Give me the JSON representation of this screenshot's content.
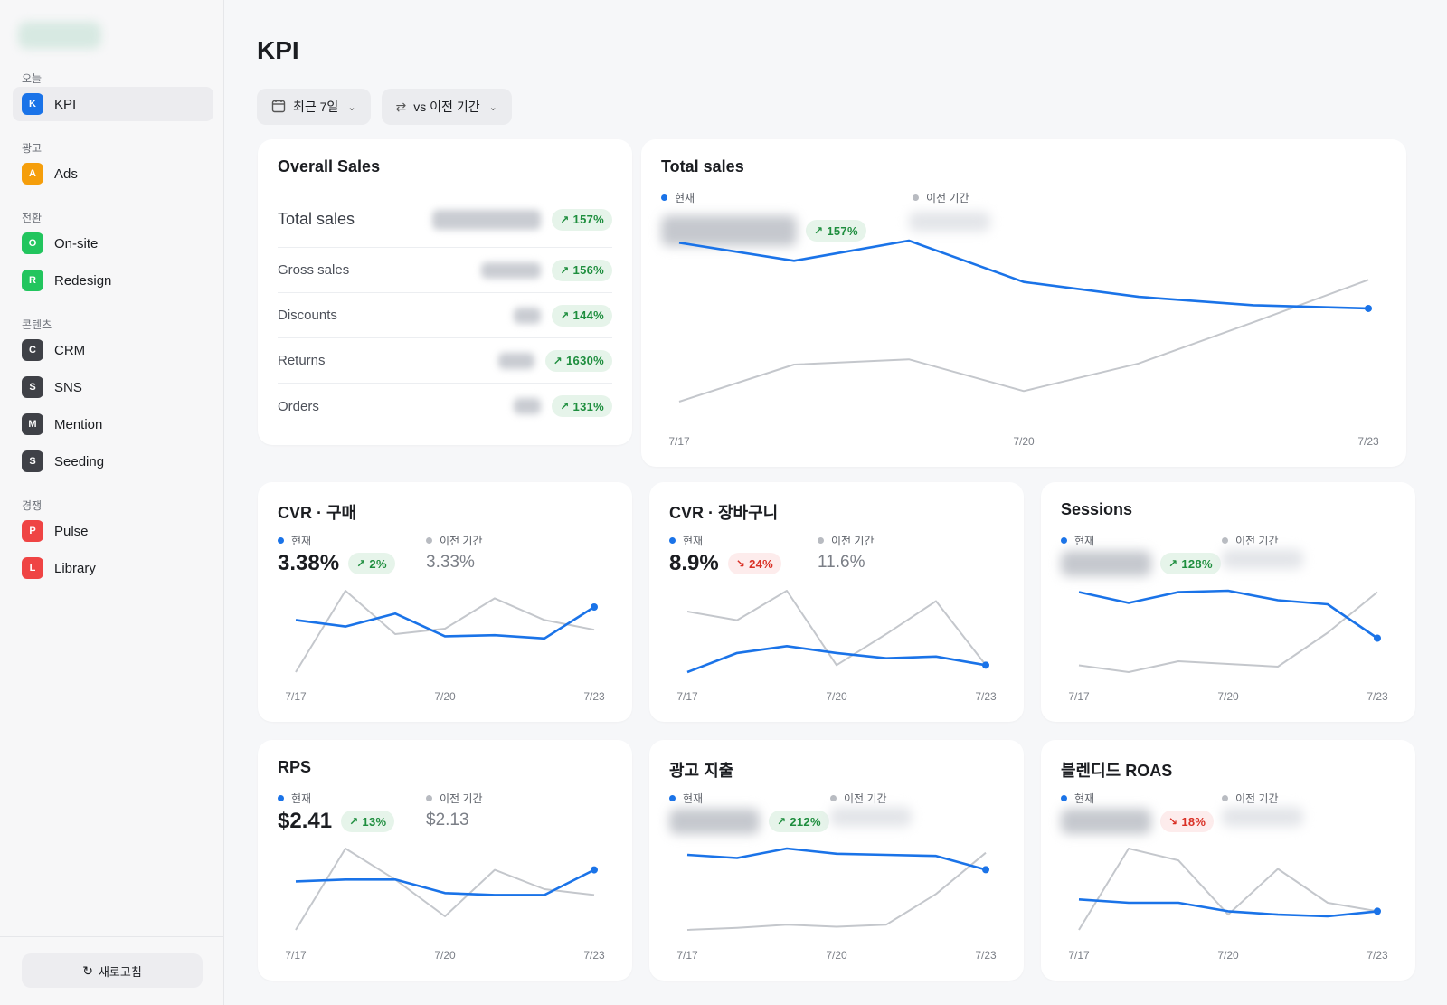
{
  "sidebar": {
    "sections": [
      {
        "label": "오늘",
        "items": [
          {
            "badge": "K",
            "label": "KPI",
            "color": "#1a73e8",
            "active": true
          }
        ]
      },
      {
        "label": "광고",
        "items": [
          {
            "badge": "A",
            "label": "Ads",
            "color": "#f59e0b"
          }
        ]
      },
      {
        "label": "전환",
        "items": [
          {
            "badge": "O",
            "label": "On-site",
            "color": "#22c55e"
          },
          {
            "badge": "R",
            "label": "Redesign",
            "color": "#22c55e"
          }
        ]
      },
      {
        "label": "콘텐츠",
        "items": [
          {
            "badge": "C",
            "label": "CRM",
            "color": "#3f4147"
          },
          {
            "badge": "S",
            "label": "SNS",
            "color": "#3f4147"
          },
          {
            "badge": "M",
            "label": "Mention",
            "color": "#3f4147"
          },
          {
            "badge": "S",
            "label": "Seeding",
            "color": "#3f4147"
          }
        ]
      },
      {
        "label": "경쟁",
        "items": [
          {
            "badge": "P",
            "label": "Pulse",
            "color": "#ef4444"
          },
          {
            "badge": "L",
            "label": "Library",
            "color": "#ef4444"
          }
        ]
      }
    ],
    "refresh_label": "새로고침",
    "refresh_icon": "refresh-icon"
  },
  "header": {
    "title": "KPI",
    "date_range": "최근 7일",
    "compare": "vs 이전 기간"
  },
  "colors": {
    "current": "#1a73e8",
    "previous": "#c4c7cc",
    "up": "#1e8e3e",
    "down": "#d93025"
  },
  "overall": {
    "title": "Overall Sales",
    "rows": [
      {
        "label": "Total sales",
        "change": "157%",
        "dir": "up"
      },
      {
        "label": "Gross sales",
        "change": "156%",
        "dir": "up"
      },
      {
        "label": "Discounts",
        "change": "144%",
        "dir": "up"
      },
      {
        "label": "Returns",
        "change": "1630%",
        "dir": "up"
      },
      {
        "label": "Orders",
        "change": "131%",
        "dir": "up"
      }
    ]
  },
  "legend": {
    "current": "현재",
    "previous": "이전 기간"
  },
  "chart_data": [
    {
      "id": "total-sales",
      "type": "line",
      "title": "Total sales",
      "change": "157%",
      "dir": "up",
      "x": [
        "7/17",
        "7/18",
        "7/19",
        "7/20",
        "7/21",
        "7/22",
        "7/23"
      ],
      "xticks": [
        "7/17",
        "7/20",
        "7/23"
      ],
      "series": [
        {
          "name": "현재",
          "values": [
            300,
            317,
            298,
            337,
            351,
            359,
            362
          ]
        },
        {
          "name": "이전 기간",
          "values": [
            450,
            415,
            410,
            440,
            414,
            375,
            335
          ]
        }
      ]
    },
    {
      "id": "cvr-purchase",
      "type": "line",
      "title": "CVR · 구매",
      "current": "3.38%",
      "previous": "3.33%",
      "change": "2%",
      "dir": "up",
      "x": [
        "7/17",
        "7/18",
        "7/19",
        "7/20",
        "7/21",
        "7/22",
        "7/23"
      ],
      "xticks": [
        "7/17",
        "7/20",
        "7/23"
      ],
      "series": [
        {
          "name": "현재",
          "values": [
            677,
            683,
            671,
            692,
            691,
            694,
            665
          ]
        },
        {
          "name": "이전 기간",
          "values": [
            725,
            650,
            690,
            685,
            657,
            677,
            686
          ]
        }
      ]
    },
    {
      "id": "cvr-cart",
      "type": "line",
      "title": "CVR · 장바구니",
      "current": "8.9%",
      "previous": "11.6%",
      "change": "24%",
      "dir": "down",
      "x": [
        "7/17",
        "7/18",
        "7/19",
        "7/20",
        "7/21",
        "7/22",
        "7/23"
      ],
      "xticks": [
        "7/17",
        "7/20",
        "7/23"
      ],
      "series": [
        {
          "name": "현재",
          "values": [
            701,
            690,
            686,
            690,
            693,
            692,
            697
          ]
        },
        {
          "name": "이전 기간",
          "values": [
            666,
            671,
            654,
            697,
            679,
            660,
            697
          ]
        }
      ]
    },
    {
      "id": "sessions",
      "type": "line",
      "title": "Sessions",
      "change": "128%",
      "dir": "up",
      "x": [
        "7/17",
        "7/18",
        "7/19",
        "7/20",
        "7/21",
        "7/22",
        "7/23"
      ],
      "xticks": [
        "7/17",
        "7/20",
        "7/23"
      ],
      "series": [
        {
          "name": "현재",
          "values": [
            661,
            669,
            661,
            660,
            667,
            670,
            695
          ]
        },
        {
          "name": "이전 기간",
          "values": [
            715,
            720,
            712,
            714,
            716,
            691,
            661
          ]
        }
      ]
    },
    {
      "id": "rps",
      "type": "line",
      "title": "RPS",
      "current": "$2.41",
      "previous": "$2.13",
      "change": "13%",
      "dir": "up",
      "x": [
        "7/17",
        "7/18",
        "7/19",
        "7/20",
        "7/21",
        "7/22",
        "7/23"
      ],
      "xticks": [
        "7/17",
        "7/20",
        "7/23"
      ],
      "series": [
        {
          "name": "현재",
          "values": [
            983,
            982,
            982,
            989,
            990,
            990,
            977
          ]
        },
        {
          "name": "이전 기간",
          "values": [
            1008,
            966,
            982,
            1001,
            977,
            987,
            990
          ]
        }
      ]
    },
    {
      "id": "ad-spend",
      "type": "line",
      "title": "광고 지출",
      "change": "212%",
      "dir": "up",
      "x": [
        "7/17",
        "7/18",
        "7/19",
        "7/20",
        "7/21",
        "7/22",
        "7/23"
      ],
      "xticks": [
        "7/17",
        "7/20",
        "7/23"
      ],
      "series": [
        {
          "name": "현재",
          "values": [
            934,
            937,
            928,
            933,
            934,
            935,
            948
          ]
        },
        {
          "name": "이전 기간",
          "values": [
            1005,
            1003,
            1000,
            1002,
            1000,
            971,
            932
          ]
        }
      ]
    },
    {
      "id": "blended-roas",
      "type": "line",
      "title": "블렌디드 ROAS",
      "change": "18%",
      "dir": "down",
      "x": [
        "7/17",
        "7/18",
        "7/19",
        "7/20",
        "7/21",
        "7/22",
        "7/23"
      ],
      "xticks": [
        "7/17",
        "7/20",
        "7/23"
      ],
      "series": [
        {
          "name": "현재",
          "values": [
            985,
            987,
            987,
            992,
            994,
            995,
            992
          ]
        },
        {
          "name": "이전 기간",
          "values": [
            1003,
            955,
            962,
            994,
            967,
            987,
            992
          ]
        }
      ]
    }
  ]
}
